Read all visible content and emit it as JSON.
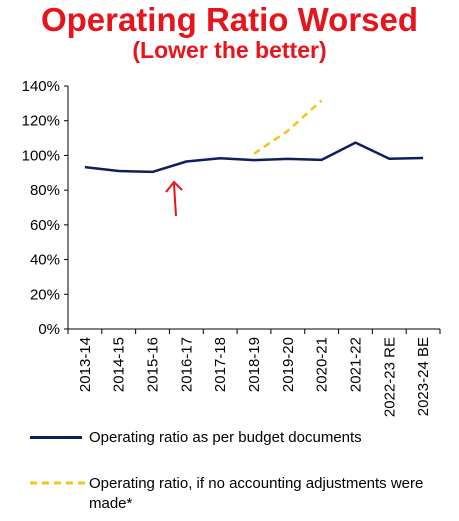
{
  "title": "Operating Ratio Worsed",
  "subtitle": "(Lower the better)",
  "colors": {
    "title": "#e8141c",
    "series1": "#0d1f5c",
    "series2": "#f5c518",
    "arrow": "#e8141c",
    "axis": "#000000"
  },
  "chart_data": {
    "type": "line",
    "categories": [
      "2013-14",
      "2014-15",
      "2015-16",
      "2016-17",
      "2017-18",
      "2018-19",
      "2019-20",
      "2020-21",
      "2021-22",
      "2022-23 RE",
      "2023-24 BE"
    ],
    "y_ticks": [
      "0%",
      "20%",
      "40%",
      "60%",
      "80%",
      "100%",
      "120%",
      "140%"
    ],
    "ylim": [
      0,
      140
    ],
    "y_unit": "%",
    "grid": false,
    "legend_position": "bottom",
    "series": [
      {
        "name": "Operating ratio as per budget documents",
        "style": "solid",
        "values": [
          93.3,
          91.0,
          90.5,
          96.5,
          98.4,
          97.3,
          98.0,
          97.4,
          107.4,
          98.1,
          98.5
        ]
      },
      {
        "name": "Operating ratio, if no accounting adjustments were made*",
        "style": "dashed",
        "values": [
          null,
          null,
          null,
          null,
          null,
          101.0,
          114.2,
          131.7,
          null,
          null,
          null
        ]
      }
    ],
    "annotations": [
      {
        "type": "arrow",
        "category": "2016-17",
        "points_to": "up"
      }
    ]
  }
}
